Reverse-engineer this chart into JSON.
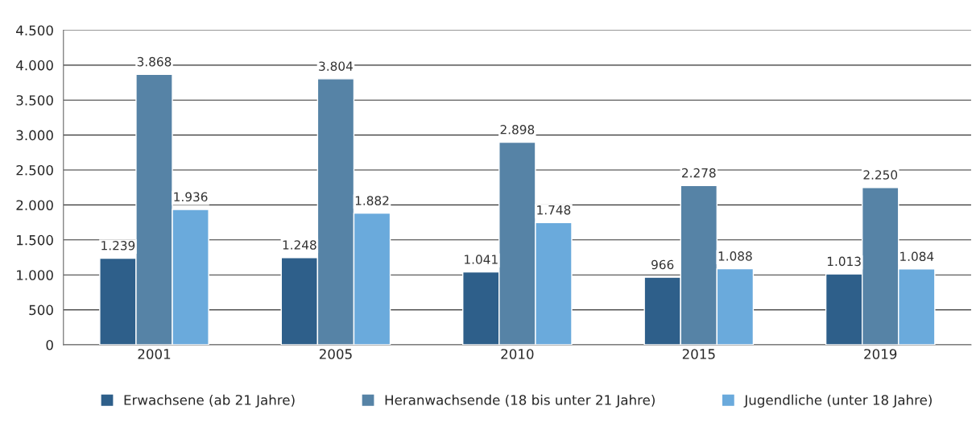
{
  "chart_data": {
    "type": "bar",
    "categories": [
      "2001",
      "2005",
      "2010",
      "2015",
      "2019"
    ],
    "series": [
      {
        "name": "Erwachsene (ab 21 Jahre)",
        "color": "#2e5f8a",
        "values": [
          1239,
          1248,
          1041,
          966,
          1013
        ],
        "value_labels": [
          "1.239",
          "1.248",
          "1.041",
          "966",
          "1.013"
        ]
      },
      {
        "name": "Heranwachsende (18 bis unter 21 Jahre)",
        "color": "#5683a6",
        "values": [
          3868,
          3804,
          2898,
          2278,
          2250
        ],
        "value_labels": [
          "3.868",
          "3.804",
          "2.898",
          "2.278",
          "2.250"
        ]
      },
      {
        "name": "Jugendliche (unter 18 Jahre)",
        "color": "#6aaadc",
        "values": [
          1936,
          1882,
          1748,
          1088,
          1084
        ],
        "value_labels": [
          "1.936",
          "1.882",
          "1.748",
          "1.088",
          "1.084"
        ]
      }
    ],
    "ylim": [
      0,
      4500
    ],
    "yticks": [
      {
        "value": 0,
        "label": "0"
      },
      {
        "value": 500,
        "label": "500"
      },
      {
        "value": 1000,
        "label": "1.000"
      },
      {
        "value": 1500,
        "label": "1.500"
      },
      {
        "value": 2000,
        "label": "2.000"
      },
      {
        "value": 2500,
        "label": "2.500"
      },
      {
        "value": 3000,
        "label": "3.000"
      },
      {
        "value": 3500,
        "label": "3.500"
      },
      {
        "value": 4000,
        "label": "4.000"
      },
      {
        "value": 4500,
        "label": "4.500"
      }
    ],
    "grid": "y",
    "legend": "bottom"
  }
}
